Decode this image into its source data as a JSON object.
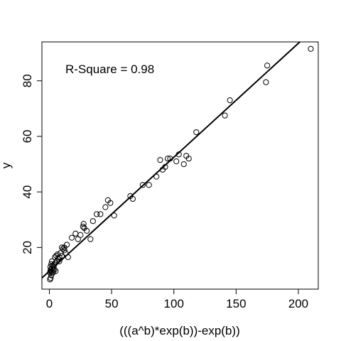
{
  "chart_data": {
    "type": "scatter",
    "title": "",
    "xlabel": "(((a^b)*exp(b))-exp(b))",
    "ylabel": "y",
    "annotation": "R-Square = 0.98",
    "xlim": [
      -6,
      216
    ],
    "ylim": [
      5,
      94
    ],
    "xticks": [
      0,
      50,
      100,
      150,
      200
    ],
    "yticks": [
      20,
      40,
      60,
      80
    ],
    "grid": false,
    "legend": "none",
    "fit_line": {
      "intercept": 11.5,
      "slope": 0.41
    },
    "series": [
      {
        "marker": "open-circle",
        "points": [
          [
            0.5,
            8.5
          ],
          [
            1,
            9
          ],
          [
            1.5,
            10
          ],
          [
            0.5,
            11
          ],
          [
            1,
            11.5
          ],
          [
            2,
            11
          ],
          [
            1,
            12
          ],
          [
            2,
            12.5
          ],
          [
            3,
            12
          ],
          [
            0.8,
            13
          ],
          [
            2.5,
            13.5
          ],
          [
            3.5,
            13
          ],
          [
            1.5,
            14
          ],
          [
            4,
            14
          ],
          [
            5,
            14.5
          ],
          [
            2,
            15
          ],
          [
            6,
            15
          ],
          [
            3,
            11
          ],
          [
            4,
            12
          ],
          [
            5,
            11.5
          ],
          [
            4.5,
            16.5
          ],
          [
            5.5,
            17
          ],
          [
            6.5,
            17.5
          ],
          [
            7,
            16
          ],
          [
            8,
            16.5
          ],
          [
            9,
            18
          ],
          [
            10,
            20
          ],
          [
            11,
            19.5
          ],
          [
            12,
            19
          ],
          [
            13,
            18
          ],
          [
            14,
            21
          ],
          [
            15,
            16.5
          ],
          [
            8,
            15
          ],
          [
            10,
            17
          ],
          [
            12,
            20
          ],
          [
            18,
            23.5
          ],
          [
            21,
            25
          ],
          [
            23,
            23
          ],
          [
            25,
            24.5
          ],
          [
            27,
            27.5
          ],
          [
            27.5,
            28.5
          ],
          [
            28,
            27
          ],
          [
            30,
            26
          ],
          [
            33,
            23
          ],
          [
            35,
            29.5
          ],
          [
            38,
            32
          ],
          [
            41,
            32
          ],
          [
            45,
            34.5
          ],
          [
            47,
            37
          ],
          [
            49,
            36
          ],
          [
            52,
            31.5
          ],
          [
            65,
            38.5
          ],
          [
            67,
            37.5
          ],
          [
            75,
            42.5
          ],
          [
            80,
            42.5
          ],
          [
            86,
            45.5
          ],
          [
            89,
            51.5
          ],
          [
            91,
            48
          ],
          [
            93,
            49
          ],
          [
            95,
            52
          ],
          [
            97,
            52
          ],
          [
            102,
            51
          ],
          [
            104,
            53.5
          ],
          [
            108,
            50
          ],
          [
            110,
            53
          ],
          [
            112,
            52
          ],
          [
            118,
            61.5
          ],
          [
            141,
            67.5
          ],
          [
            145,
            73
          ],
          [
            174,
            79.5
          ],
          [
            175,
            85.5
          ],
          [
            210,
            91.5
          ]
        ]
      }
    ]
  }
}
